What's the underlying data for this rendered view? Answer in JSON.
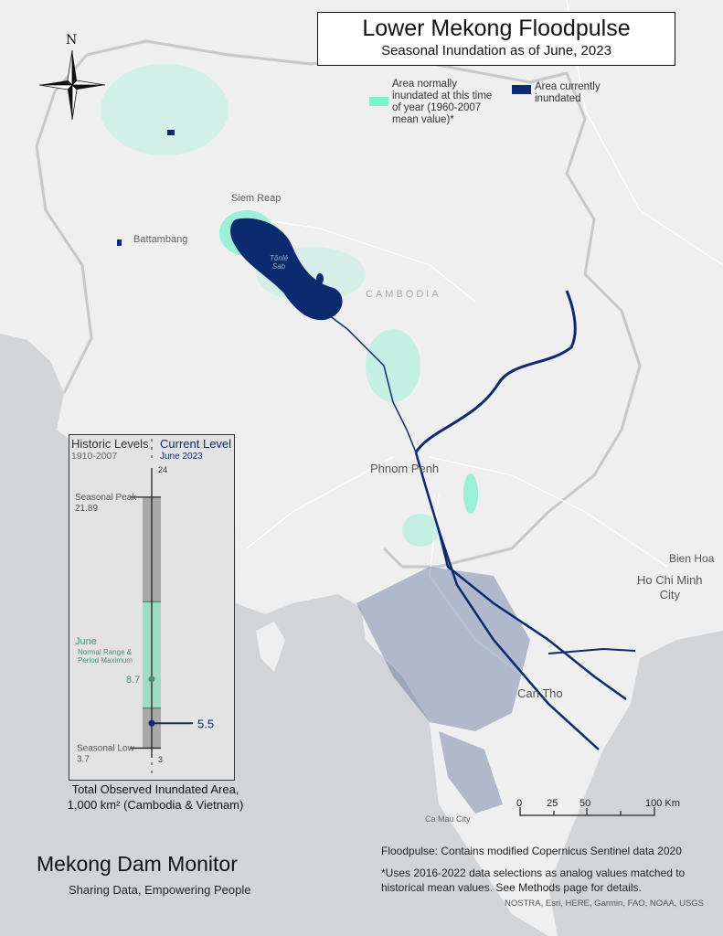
{
  "title": {
    "main": "Lower Mekong Floodpulse",
    "subtitle": "Seasonal Inundation as of June, 2023"
  },
  "legend": {
    "normal": {
      "label": "Area normally inundated at this time of year (1960-2007 mean value)*",
      "lines": [
        "Area normally",
        "inundated at this time",
        "of year (1960-2007",
        "mean value)*"
      ],
      "color": "#7ef2cf"
    },
    "current": {
      "label": "Area currently inundated",
      "lines": [
        "Area currently",
        "inundated"
      ],
      "color": "#0b2a6f"
    }
  },
  "compass": {
    "north_label": "N"
  },
  "places": {
    "siem_reap": "Siem Reap",
    "battambang": "Battambang",
    "tonle_sap": [
      "Tônlé",
      "Sab"
    ],
    "cambodia": "CAMBODIA",
    "phnom_penh": "Phnom Penh",
    "bien_hoa": "Bien Hoa",
    "hcmc": [
      "Ho Chi Minh",
      "City"
    ],
    "can_tho": "Can Tho",
    "ca_mau": "Ca Mau City"
  },
  "gauge": {
    "historic_label": "Historic Levels",
    "historic_years": "1910-2007",
    "current_label": "Current Level",
    "current_date": "June 2023",
    "axis_max": 24,
    "axis_min": 3,
    "axis_max_label": "24",
    "axis_min_label": "3",
    "peak_label": "Seasonal Peak",
    "peak_value": 21.89,
    "peak_text": "21.89",
    "low_label": "Seasonal Low",
    "low_value": 3.7,
    "low_text": "3.7",
    "june_label": "June",
    "june_sub": [
      "Normal Range &",
      "Period Maximum"
    ],
    "june_range": [
      6.6,
      14.3
    ],
    "june_mean": 8.7,
    "june_mean_text": "8.7",
    "current_value": 5.5,
    "current_text": "5.5",
    "caption": [
      "Total Observed Inundated Area,",
      "1,000 km² (Cambodia & Vietnam)"
    ],
    "colors": {
      "historic": "#a9a9a9",
      "june": "#a0dcc4",
      "mean": "#4a8f6f",
      "current": "#0b2a6f"
    }
  },
  "scale_bar": {
    "ticks": [
      "0",
      "25",
      "50",
      "100 Km"
    ]
  },
  "credits": {
    "floodpulse": "Floodpulse: Contains modified Copernicus Sentinel data 2020",
    "note": [
      "*Uses 2016-2022 data selections as analog values matched to",
      "historical mean values. See Methods page for details."
    ],
    "basemap": "NOSTRA, Esri, HERE, Garmin, FAO, NOAA, USGS"
  },
  "brand": {
    "name": "Mekong Dam Monitor",
    "tagline": "Sharing Data, Empowering People"
  },
  "colors": {
    "land": "#efefef",
    "sea": "#d2d5d8",
    "border": "#c4c4c4"
  }
}
